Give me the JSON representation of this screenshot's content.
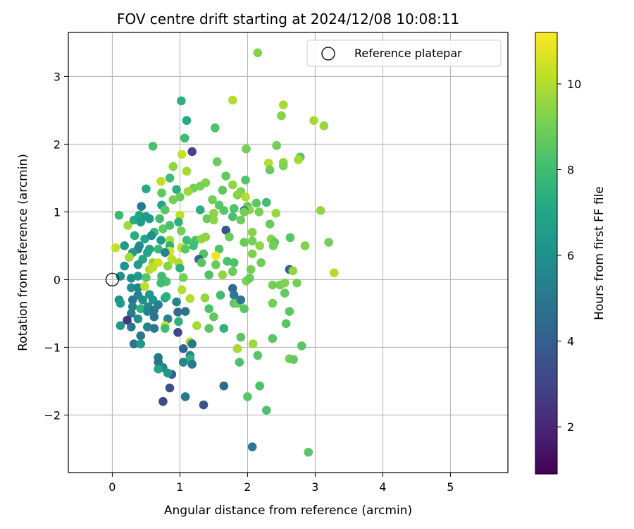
{
  "chart_data": {
    "type": "scatter",
    "title": "FOV centre drift starting at 2024/12/08 10:08:11",
    "xlabel": "Angular distance from reference (arcmin)",
    "ylabel": "Rotation from reference (arcmin)",
    "xlim": [
      -0.65,
      5.85
    ],
    "ylim": [
      -2.85,
      3.65
    ],
    "xticks": [
      0,
      1,
      2,
      3,
      4,
      5
    ],
    "xtick_labels": [
      "0",
      "1",
      "2",
      "3",
      "4",
      "5"
    ],
    "yticks": [
      -2,
      -1,
      0,
      1,
      2,
      3
    ],
    "ytick_labels": [
      "−2",
      "−1",
      "0",
      "1",
      "2",
      "3"
    ],
    "grid": true,
    "legend": {
      "position": "top-right",
      "entries": [
        "Reference platepar"
      ]
    },
    "colorbar": {
      "label": "Hours from first FF file",
      "colormap": "viridis",
      "range": [
        0.9,
        11.2
      ],
      "ticks": [
        2,
        4,
        6,
        8,
        10
      ],
      "tick_labels": [
        "2",
        "4",
        "6",
        "8",
        "10"
      ]
    },
    "reference": {
      "x": 0,
      "y": 0
    },
    "points": [
      [
        2.15,
        3.35,
        9.3
      ],
      [
        1.02,
        2.64,
        7.5
      ],
      [
        1.78,
        2.65,
        10.0
      ],
      [
        2.53,
        2.58,
        9.8
      ],
      [
        2.5,
        2.42,
        9.3
      ],
      [
        1.1,
        2.35,
        7.2
      ],
      [
        2.98,
        2.35,
        9.8
      ],
      [
        3.13,
        2.27,
        9.6
      ],
      [
        1.52,
        2.24,
        8.3
      ],
      [
        1.07,
        2.09,
        8.0
      ],
      [
        0.6,
        1.97,
        8.2
      ],
      [
        2.43,
        1.98,
        9.0
      ],
      [
        1.98,
        1.93,
        9.0
      ],
      [
        1.18,
        1.89,
        3.0
      ],
      [
        1.03,
        1.85,
        10.3
      ],
      [
        2.78,
        1.81,
        8.5
      ],
      [
        1.55,
        1.74,
        8.8
      ],
      [
        2.31,
        1.72,
        10.0
      ],
      [
        2.53,
        1.73,
        9.5
      ],
      [
        2.75,
        1.77,
        9.8
      ],
      [
        2.53,
        1.68,
        9.2
      ],
      [
        0.9,
        1.67,
        9.5
      ],
      [
        1.1,
        1.6,
        9.8
      ],
      [
        2.33,
        1.62,
        8.8
      ],
      [
        1.68,
        1.53,
        8.6
      ],
      [
        0.85,
        1.5,
        8.0
      ],
      [
        1.97,
        1.47,
        8.4
      ],
      [
        0.72,
        1.45,
        10.2
      ],
      [
        1.38,
        1.43,
        9.2
      ],
      [
        1.3,
        1.38,
        9.0
      ],
      [
        1.78,
        1.4,
        9.4
      ],
      [
        0.5,
        1.34,
        7.2
      ],
      [
        0.95,
        1.33,
        7.4
      ],
      [
        1.2,
        1.35,
        9.0
      ],
      [
        1.63,
        1.32,
        8.7
      ],
      [
        1.9,
        1.3,
        9.2
      ],
      [
        0.73,
        1.28,
        8.6
      ],
      [
        1.12,
        1.3,
        9.7
      ],
      [
        1.0,
        1.22,
        8.8
      ],
      [
        1.48,
        1.18,
        9.0
      ],
      [
        1.85,
        1.25,
        9.3
      ],
      [
        1.97,
        1.22,
        10.0
      ],
      [
        0.9,
        1.18,
        9.0
      ],
      [
        2.13,
        1.13,
        8.6
      ],
      [
        2.28,
        1.14,
        8.0
      ],
      [
        0.73,
        1.1,
        7.0
      ],
      [
        1.58,
        1.1,
        8.5
      ],
      [
        2.0,
        1.08,
        8.7
      ],
      [
        0.43,
        1.08,
        5.0
      ],
      [
        0.78,
        1.03,
        8.5
      ],
      [
        1.65,
        1.02,
        8.5
      ],
      [
        1.8,
        1.05,
        8.3
      ],
      [
        2.03,
        1.03,
        9.4
      ],
      [
        1.95,
        1.02,
        4.5
      ],
      [
        3.08,
        1.02,
        9.5
      ],
      [
        0.4,
        0.95,
        7.0
      ],
      [
        0.5,
        0.93,
        6.5
      ],
      [
        0.1,
        0.95,
        7.8
      ],
      [
        1.3,
        1.03,
        7.3
      ],
      [
        1.0,
        0.95,
        10.2
      ],
      [
        2.17,
        1.0,
        9.0
      ],
      [
        1.95,
        1.0,
        9.0
      ],
      [
        2.42,
        0.98,
        9.6
      ],
      [
        0.7,
        0.9,
        8.0
      ],
      [
        0.55,
        0.9,
        6.5
      ],
      [
        1.5,
        0.98,
        9.4
      ],
      [
        1.78,
        0.93,
        8.2
      ],
      [
        1.9,
        0.88,
        8.9
      ],
      [
        1.4,
        0.9,
        8.8
      ],
      [
        1.5,
        0.88,
        9.4
      ],
      [
        0.23,
        0.8,
        9.7
      ],
      [
        0.32,
        0.88,
        7.2
      ],
      [
        0.42,
        0.85,
        6.5
      ],
      [
        0.75,
        0.75,
        8.6
      ],
      [
        0.98,
        0.85,
        7.5
      ],
      [
        0.85,
        0.8,
        8.2
      ],
      [
        2.33,
        0.82,
        8.8
      ],
      [
        1.68,
        0.73,
        3.5
      ],
      [
        0.62,
        0.7,
        7.8
      ],
      [
        1.02,
        0.72,
        9.0
      ],
      [
        2.07,
        0.7,
        9.3
      ],
      [
        0.33,
        0.65,
        7.3
      ],
      [
        0.48,
        0.6,
        7.0
      ],
      [
        0.58,
        0.65,
        6.0
      ],
      [
        1.38,
        0.63,
        9.4
      ],
      [
        2.63,
        0.62,
        8.5
      ],
      [
        0.72,
        0.58,
        6.5
      ],
      [
        1.1,
        0.58,
        8.0
      ],
      [
        1.23,
        0.58,
        8.2
      ],
      [
        1.32,
        0.6,
        9.5
      ],
      [
        0.85,
        0.58,
        9.8
      ],
      [
        1.73,
        0.63,
        8.8
      ],
      [
        2.35,
        0.6,
        9.3
      ],
      [
        1.95,
        0.55,
        8.8
      ],
      [
        2.07,
        0.57,
        9.0
      ],
      [
        2.4,
        0.55,
        8.7
      ],
      [
        3.2,
        0.55,
        9.0
      ],
      [
        0.05,
        0.47,
        10.3
      ],
      [
        0.18,
        0.5,
        6.5
      ],
      [
        0.4,
        0.5,
        6.0
      ],
      [
        0.55,
        0.45,
        6.8
      ],
      [
        0.85,
        0.5,
        7.5
      ],
      [
        1.02,
        0.47,
        10.3
      ],
      [
        1.2,
        0.5,
        8.0
      ],
      [
        0.38,
        0.45,
        5.5
      ],
      [
        2.18,
        0.5,
        9.5
      ],
      [
        2.38,
        0.5,
        9.0
      ],
      [
        2.85,
        0.5,
        9.2
      ],
      [
        0.68,
        0.45,
        7.8
      ],
      [
        0.85,
        0.42,
        10.5
      ],
      [
        1.58,
        0.45,
        8.3
      ],
      [
        1.08,
        0.45,
        8.5
      ],
      [
        0.3,
        0.4,
        6.5
      ],
      [
        0.52,
        0.4,
        7.0
      ],
      [
        0.78,
        0.4,
        5.5
      ],
      [
        0.25,
        0.33,
        9.8
      ],
      [
        0.45,
        0.3,
        7.0
      ],
      [
        1.35,
        0.38,
        8.3
      ],
      [
        1.53,
        0.35,
        11.0
      ],
      [
        2.07,
        0.38,
        9.2
      ],
      [
        0.6,
        0.25,
        9.5
      ],
      [
        0.88,
        0.3,
        10.2
      ],
      [
        1.28,
        0.3,
        4.5
      ],
      [
        0.18,
        0.2,
        6.2
      ],
      [
        0.38,
        0.22,
        6.5
      ],
      [
        0.68,
        0.25,
        10.5
      ],
      [
        0.98,
        0.25,
        10.0
      ],
      [
        1.7,
        0.27,
        8.2
      ],
      [
        0.82,
        0.2,
        9.3
      ],
      [
        1.32,
        0.25,
        8.5
      ],
      [
        1.53,
        0.22,
        8.8
      ],
      [
        1.8,
        0.25,
        8.3
      ],
      [
        2.62,
        0.15,
        4.0
      ],
      [
        2.2,
        0.25,
        8.9
      ],
      [
        1.0,
        0.17,
        7.5
      ],
      [
        1.78,
        0.12,
        8.8
      ],
      [
        2.05,
        0.15,
        9.0
      ],
      [
        0.55,
        0.15,
        10.0
      ],
      [
        0.6,
        0.18,
        10.2
      ],
      [
        1.43,
        0.07,
        8.3
      ],
      [
        1.63,
        0.07,
        9.5
      ],
      [
        2.67,
        0.13,
        9.5
      ],
      [
        3.28,
        0.1,
        10.0
      ],
      [
        0.12,
        0.05,
        6.0
      ],
      [
        0.28,
        0.02,
        6.0
      ],
      [
        0.38,
        0.05,
        6.5
      ],
      [
        0.5,
        0.03,
        8.5
      ],
      [
        0.73,
        0.05,
        8.0
      ],
      [
        1.05,
        0.03,
        9.0
      ],
      [
        1.98,
        -0.02,
        9.2
      ],
      [
        2.03,
        0.02,
        8.8
      ],
      [
        0.8,
        -0.03,
        8.2
      ],
      [
        2.48,
        -0.08,
        9.0
      ],
      [
        2.55,
        -0.05,
        9.2
      ],
      [
        2.73,
        -0.05,
        9.0
      ],
      [
        2.37,
        -0.08,
        9.0
      ],
      [
        0.28,
        -0.12,
        6.0
      ],
      [
        0.38,
        -0.12,
        5.5
      ],
      [
        0.48,
        -0.1,
        10.2
      ],
      [
        0.72,
        -0.05,
        8.0
      ],
      [
        1.03,
        -0.15,
        10.0
      ],
      [
        0.38,
        -0.23,
        5.5
      ],
      [
        0.55,
        -0.22,
        6.5
      ],
      [
        0.78,
        -0.27,
        7.0
      ],
      [
        1.15,
        -0.28,
        10.0
      ],
      [
        1.78,
        -0.13,
        4.5
      ],
      [
        0.3,
        -0.3,
        5.0
      ],
      [
        0.45,
        -0.3,
        6.0
      ],
      [
        0.6,
        -0.3,
        6.2
      ],
      [
        0.8,
        -0.25,
        7.5
      ],
      [
        1.37,
        -0.27,
        9.5
      ],
      [
        1.6,
        -0.23,
        8.0
      ],
      [
        1.8,
        -0.23,
        5.0
      ],
      [
        2.55,
        -0.2,
        8.7
      ],
      [
        0.1,
        -0.3,
        6.0
      ],
      [
        0.12,
        -0.35,
        6.5
      ],
      [
        0.3,
        -0.4,
        5.5
      ],
      [
        0.42,
        -0.43,
        7.5
      ],
      [
        0.53,
        -0.4,
        5.8
      ],
      [
        0.68,
        -0.37,
        5.3
      ],
      [
        0.95,
        -0.33,
        5.5
      ],
      [
        1.8,
        -0.35,
        8.5
      ],
      [
        1.85,
        -0.35,
        8.8
      ],
      [
        1.9,
        -0.3,
        5.0
      ],
      [
        2.37,
        -0.35,
        9.0
      ],
      [
        2.62,
        -0.47,
        8.5
      ],
      [
        0.28,
        -0.5,
        5.2
      ],
      [
        0.52,
        -0.47,
        5.5
      ],
      [
        0.62,
        -0.45,
        5.0
      ],
      [
        0.97,
        -0.48,
        4.5
      ],
      [
        1.08,
        -0.47,
        4.8
      ],
      [
        1.43,
        -0.43,
        8.3
      ],
      [
        1.95,
        -0.43,
        8.5
      ],
      [
        0.22,
        -0.6,
        2.5
      ],
      [
        0.38,
        -0.58,
        6.0
      ],
      [
        0.62,
        -0.55,
        4.8
      ],
      [
        0.82,
        -0.58,
        5.5
      ],
      [
        0.98,
        -0.62,
        7.5
      ],
      [
        1.5,
        -0.55,
        8.6
      ],
      [
        0.28,
        -0.7,
        5.0
      ],
      [
        0.12,
        -0.68,
        6.3
      ],
      [
        0.52,
        -0.7,
        5.5
      ],
      [
        0.78,
        -0.68,
        10.5
      ],
      [
        0.78,
        -0.72,
        8.0
      ],
      [
        0.62,
        -0.72,
        5.0
      ],
      [
        1.25,
        -0.68,
        9.8
      ],
      [
        1.43,
        -0.72,
        8.5
      ],
      [
        1.65,
        -0.72,
        7.5
      ],
      [
        2.57,
        -0.65,
        8.5
      ],
      [
        0.97,
        -0.78,
        3.0
      ],
      [
        0.42,
        -0.83,
        4.8
      ],
      [
        1.9,
        -0.85,
        8.5
      ],
      [
        2.37,
        -0.87,
        8.5
      ],
      [
        0.32,
        -0.95,
        4.8
      ],
      [
        0.42,
        -0.95,
        6.5
      ],
      [
        1.15,
        -0.92,
        9.8
      ],
      [
        1.18,
        -0.95,
        5.0
      ],
      [
        1.85,
        -1.02,
        9.8
      ],
      [
        2.08,
        -0.95,
        9.7
      ],
      [
        2.8,
        -0.98,
        8.5
      ],
      [
        1.05,
        -1.02,
        4.2
      ],
      [
        1.15,
        -1.12,
        5.5
      ],
      [
        2.15,
        -1.12,
        8.5
      ],
      [
        0.68,
        -1.15,
        5.0
      ],
      [
        1.15,
        -1.17,
        7.5
      ],
      [
        0.68,
        -1.22,
        4.8
      ],
      [
        1.05,
        -1.22,
        5.5
      ],
      [
        1.18,
        -1.25,
        5.0
      ],
      [
        1.88,
        -1.22,
        8.2
      ],
      [
        2.62,
        -1.17,
        9.0
      ],
      [
        2.68,
        -1.18,
        8.7
      ],
      [
        0.75,
        -1.3,
        5.5
      ],
      [
        0.68,
        -1.32,
        6.8
      ],
      [
        0.88,
        -1.4,
        4.0
      ],
      [
        0.82,
        -1.38,
        6.3
      ],
      [
        0.85,
        -1.6,
        3.5
      ],
      [
        1.65,
        -1.57,
        4.5
      ],
      [
        2.18,
        -1.57,
        8.2
      ],
      [
        0.75,
        -1.8,
        3.2
      ],
      [
        1.08,
        -1.73,
        5.0
      ],
      [
        1.35,
        -1.85,
        3.5
      ],
      [
        2.0,
        -1.73,
        8.5
      ],
      [
        2.28,
        -1.93,
        8.2
      ],
      [
        2.07,
        -2.47,
        5.0
      ],
      [
        2.9,
        -2.55,
        8.5
      ]
    ]
  }
}
